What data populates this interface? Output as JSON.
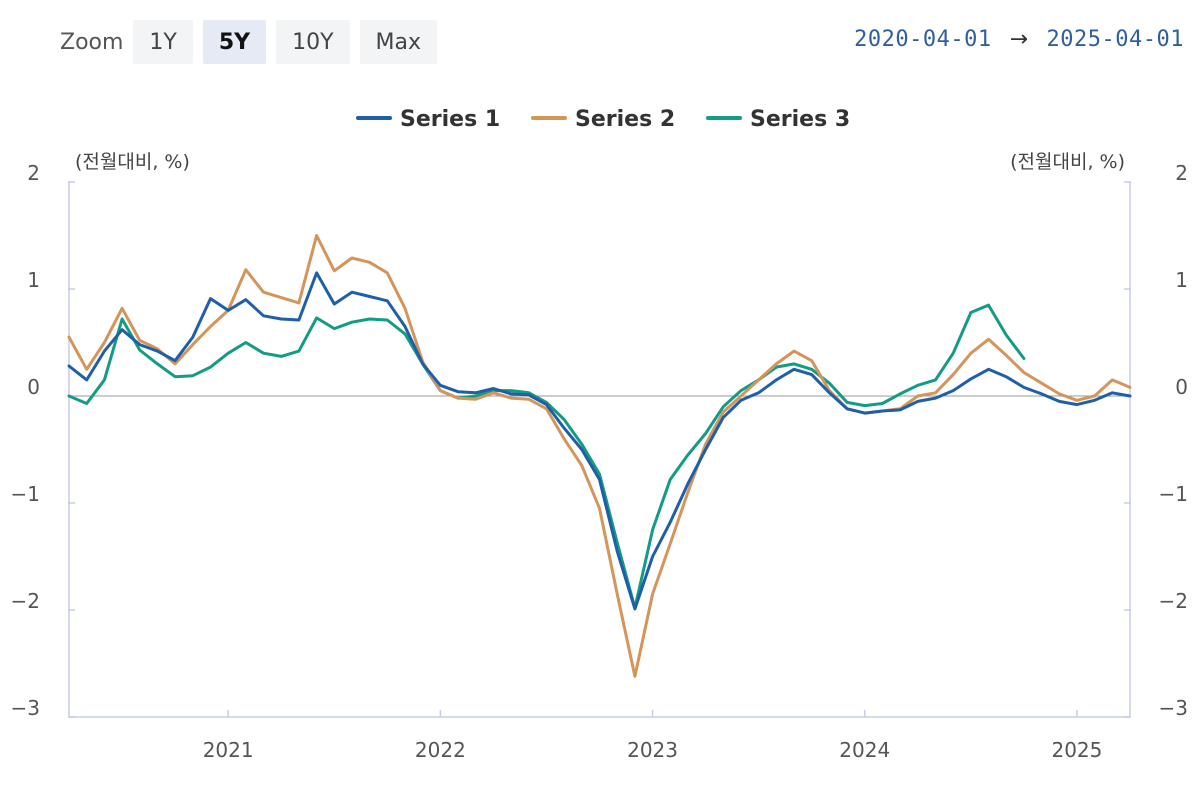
{
  "toolbar": {
    "zoom_label": "Zoom",
    "buttons": [
      "1Y",
      "5Y",
      "10Y",
      "Max"
    ],
    "active": "5Y"
  },
  "range": {
    "start": "2020-04-01",
    "arrow": "→",
    "end": "2025-04-01"
  },
  "chart_data": {
    "type": "line",
    "left_unit": "(전월대비, %)",
    "right_unit": "(전월대비, %)",
    "ylim": [
      -3,
      2
    ],
    "yticks": [
      2,
      1,
      0,
      -1,
      -2,
      -3
    ],
    "ytick_labels": [
      "2",
      "1",
      "0",
      "−1",
      "−2",
      "−3"
    ],
    "xlim": [
      "2020-04",
      "2025-04"
    ],
    "xticks": [
      "2021",
      "2022",
      "2023",
      "2024",
      "2025"
    ],
    "grid": false,
    "zero_line": true,
    "legend_position": "top-center",
    "series": [
      {
        "name": "Series 1",
        "color": "#1f5fa8",
        "start": "2020-04",
        "values": [
          0.28,
          0.15,
          0.42,
          0.62,
          0.48,
          0.42,
          0.33,
          0.55,
          0.91,
          0.8,
          0.9,
          0.75,
          0.72,
          0.71,
          1.15,
          0.86,
          0.97,
          0.93,
          0.89,
          0.65,
          0.3,
          0.1,
          0.04,
          0.03,
          0.07,
          0.02,
          0.01,
          -0.08,
          -0.3,
          -0.5,
          -0.78,
          -1.45,
          -1.99,
          -1.5,
          -1.18,
          -0.82,
          -0.5,
          -0.2,
          -0.04,
          0.03,
          0.15,
          0.25,
          0.2,
          0.03,
          -0.12,
          -0.16,
          -0.14,
          -0.13,
          -0.05,
          -0.02,
          0.05,
          0.16,
          0.25,
          0.18,
          0.08,
          0.02,
          -0.05,
          -0.08,
          -0.04,
          0.03,
          0.0
        ]
      },
      {
        "name": "Series 2",
        "color": "#d4945a",
        "start": "2020-04",
        "values": [
          0.55,
          0.25,
          0.5,
          0.82,
          0.52,
          0.44,
          0.3,
          0.48,
          0.65,
          0.8,
          1.18,
          0.97,
          0.92,
          0.87,
          1.5,
          1.17,
          1.29,
          1.25,
          1.15,
          0.82,
          0.32,
          0.05,
          -0.02,
          -0.03,
          0.03,
          -0.02,
          -0.03,
          -0.12,
          -0.4,
          -0.65,
          -1.05,
          -1.85,
          -2.62,
          -1.85,
          -1.38,
          -0.9,
          -0.45,
          -0.15,
          0.0,
          0.15,
          0.3,
          0.42,
          0.33,
          0.05,
          -0.12,
          -0.16,
          -0.14,
          -0.12,
          0.0,
          0.03,
          0.2,
          0.4,
          0.53,
          0.38,
          0.22,
          0.12,
          0.02,
          -0.04,
          0.0,
          0.15,
          0.08
        ]
      },
      {
        "name": "Series 3",
        "color": "#139b86",
        "start": "2020-04",
        "values": [
          0.0,
          -0.07,
          0.15,
          0.72,
          0.43,
          0.3,
          0.18,
          0.19,
          0.27,
          0.4,
          0.5,
          0.4,
          0.37,
          0.42,
          0.73,
          0.63,
          0.69,
          0.72,
          0.71,
          0.58,
          0.3,
          0.05,
          -0.02,
          0.0,
          0.05,
          0.05,
          0.03,
          -0.06,
          -0.22,
          -0.45,
          -0.73,
          -1.37,
          -1.98,
          -1.25,
          -0.78,
          -0.55,
          -0.35,
          -0.1,
          0.05,
          0.15,
          0.27,
          0.3,
          0.25,
          0.12,
          -0.06,
          -0.09,
          -0.07,
          0.02,
          0.1,
          0.15,
          0.4,
          0.78,
          0.85,
          0.57,
          0.35
        ]
      }
    ]
  }
}
